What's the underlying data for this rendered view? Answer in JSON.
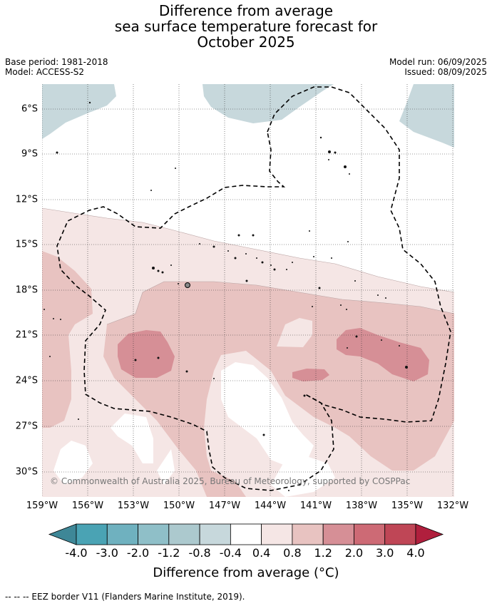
{
  "title": {
    "line1": "Difference from average",
    "line2": "sea surface temperature forecast for",
    "line3": "October 2025"
  },
  "meta_left": {
    "base_period": "Base period: 1981-2018",
    "model": "Model: ACCESS-S2"
  },
  "meta_right": {
    "model_run": "Model run: 06/09/2025",
    "issued": "Issued: 08/09/2025"
  },
  "latitude_labels": [
    "6°S",
    "9°S",
    "12°S",
    "15°S",
    "18°S",
    "21°S",
    "24°S",
    "27°S",
    "30°S"
  ],
  "longitude_labels": [
    "159°W",
    "156°W",
    "153°W",
    "150°W",
    "147°W",
    "144°W",
    "141°W",
    "138°W",
    "135°W",
    "132°W"
  ],
  "copyright": "© Commonwealth of Australia 2025, Bureau of Meteorology, supported by COSPPac",
  "colorbar": {
    "ticks": [
      "-4.0",
      "-3.0",
      "-2.0",
      "-1.2",
      "-0.8",
      "-0.4",
      "0.4",
      "0.8",
      "1.2",
      "2.0",
      "3.0",
      "4.0"
    ],
    "colors": [
      "#4aa3b4",
      "#6fb1bf",
      "#8fbfc8",
      "#acc9ce",
      "#c7d8dc",
      "#ffffff",
      "#f5e6e5",
      "#e8c3c1",
      "#d68f96",
      "#cd6a75",
      "#bf4656"
    ],
    "under_color": "#3e8797",
    "over_color": "#b01f3d",
    "label": "Difference from average (°C)"
  },
  "footer": "--  --  -- EEZ border V11 (Flanders Marine Institute, 2019)."
}
